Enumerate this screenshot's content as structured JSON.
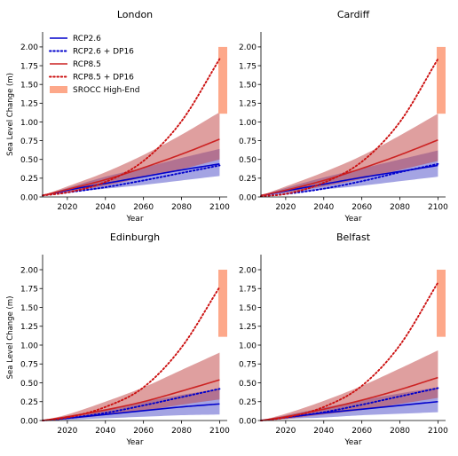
{
  "chart_data": [
    {
      "type": "line",
      "title": "London",
      "xlabel": "Year",
      "ylabel": "Sea Level Change (m)",
      "xlim": [
        2007,
        2104
      ],
      "ylim": [
        0,
        2.2
      ],
      "xticks": [
        "2020",
        "2040",
        "2060",
        "2080",
        "2100"
      ],
      "yticks": [
        "0.00",
        "0.25",
        "0.50",
        "0.75",
        "1.00",
        "1.25",
        "1.50",
        "1.75",
        "2.00"
      ],
      "legend_position": "top-left",
      "x": [
        2007,
        2020,
        2040,
        2060,
        2080,
        2100
      ],
      "series": [
        {
          "name": "RCP2.6",
          "style": "solid",
          "color": "#0000cc",
          "values": [
            0.02,
            0.09,
            0.18,
            0.27,
            0.36,
            0.44
          ],
          "band_low": [
            0.02,
            0.06,
            0.11,
            0.16,
            0.22,
            0.28
          ],
          "band_high": [
            0.02,
            0.12,
            0.27,
            0.39,
            0.52,
            0.64
          ],
          "band_color": "#4a4ac8"
        },
        {
          "name": "RCP2.6 + DP16",
          "style": "dotted",
          "color": "#0000cc",
          "values": [
            0.02,
            0.06,
            0.13,
            0.22,
            0.32,
            0.42
          ]
        },
        {
          "name": "RCP8.5",
          "style": "solid",
          "color": "#cc2222",
          "values": [
            0.02,
            0.1,
            0.23,
            0.39,
            0.57,
            0.77
          ],
          "band_low": [
            0.02,
            0.07,
            0.15,
            0.26,
            0.37,
            0.5
          ],
          "band_high": [
            0.02,
            0.14,
            0.33,
            0.56,
            0.83,
            1.13
          ],
          "band_color": "#c04040"
        },
        {
          "name": "RCP8.5 + DP16",
          "style": "dotted",
          "color": "#cc1111",
          "values": [
            0.02,
            0.06,
            0.2,
            0.48,
            1.01,
            1.84
          ]
        }
      ],
      "srocc_high_end": {
        "name": "SROCC High-End",
        "range": [
          1.11,
          2.0
        ],
        "color": "#fda88a"
      }
    },
    {
      "type": "line",
      "title": "Cardiff",
      "xlabel": "Year",
      "ylabel": "",
      "xlim": [
        2007,
        2104
      ],
      "ylim": [
        0,
        2.2
      ],
      "xticks": [
        "2020",
        "2040",
        "2060",
        "2080",
        "2100"
      ],
      "yticks": [
        "0.00",
        "0.25",
        "0.50",
        "0.75",
        "1.00",
        "1.25",
        "1.50",
        "1.75",
        "2.00"
      ],
      "x": [
        2007,
        2020,
        2040,
        2060,
        2080,
        2100
      ],
      "series": [
        {
          "name": "RCP2.6",
          "style": "solid",
          "color": "#0000cc",
          "values": [
            0.02,
            0.08,
            0.17,
            0.26,
            0.34,
            0.42
          ],
          "band_low": [
            0.02,
            0.05,
            0.1,
            0.15,
            0.21,
            0.27
          ],
          "band_high": [
            0.02,
            0.12,
            0.26,
            0.38,
            0.5,
            0.62
          ],
          "band_color": "#4a4ac8"
        },
        {
          "name": "RCP2.6 + DP16",
          "style": "dotted",
          "color": "#0000cc",
          "values": [
            0.01,
            0.04,
            0.11,
            0.21,
            0.33,
            0.44
          ]
        },
        {
          "name": "RCP8.5",
          "style": "solid",
          "color": "#cc2222",
          "values": [
            0.02,
            0.09,
            0.22,
            0.38,
            0.56,
            0.76
          ],
          "band_low": [
            0.02,
            0.06,
            0.14,
            0.24,
            0.36,
            0.48
          ],
          "band_high": [
            0.02,
            0.14,
            0.33,
            0.55,
            0.82,
            1.11
          ],
          "band_color": "#c04040"
        },
        {
          "name": "RCP8.5 + DP16",
          "style": "dotted",
          "color": "#cc1111",
          "values": [
            0.01,
            0.04,
            0.19,
            0.47,
            1.0,
            1.84
          ]
        }
      ],
      "srocc_high_end": {
        "name": "SROCC High-End",
        "range": [
          1.11,
          2.0
        ],
        "color": "#fda88a"
      }
    },
    {
      "type": "line",
      "title": "Edinburgh",
      "xlabel": "Year",
      "ylabel": "Sea Level Change (m)",
      "xlim": [
        2007,
        2104
      ],
      "ylim": [
        0,
        2.2
      ],
      "xticks": [
        "2020",
        "2040",
        "2060",
        "2080",
        "2100"
      ],
      "yticks": [
        "0.00",
        "0.25",
        "0.50",
        "0.75",
        "1.00",
        "1.25",
        "1.50",
        "1.75",
        "2.00"
      ],
      "x": [
        2007,
        2020,
        2040,
        2060,
        2080,
        2100
      ],
      "series": [
        {
          "name": "RCP2.6",
          "style": "solid",
          "color": "#0000cc",
          "values": [
            0.0,
            0.03,
            0.08,
            0.13,
            0.18,
            0.22
          ],
          "band_low": [
            0.0,
            0.01,
            0.03,
            0.05,
            0.07,
            0.08
          ],
          "band_high": [
            0.0,
            0.06,
            0.15,
            0.25,
            0.34,
            0.42
          ],
          "band_color": "#4a4ac8"
        },
        {
          "name": "RCP2.6 + DP16",
          "style": "dotted",
          "color": "#0000cc",
          "values": [
            0.0,
            0.03,
            0.1,
            0.2,
            0.31,
            0.42
          ]
        },
        {
          "name": "RCP8.5",
          "style": "solid",
          "color": "#cc2222",
          "values": [
            0.0,
            0.05,
            0.14,
            0.25,
            0.39,
            0.54
          ],
          "band_low": [
            0.0,
            0.02,
            0.07,
            0.13,
            0.21,
            0.28
          ],
          "band_high": [
            0.0,
            0.08,
            0.25,
            0.44,
            0.67,
            0.9
          ],
          "band_color": "#c04040"
        },
        {
          "name": "RCP8.5 + DP16",
          "style": "dotted",
          "color": "#cc1111",
          "values": [
            0.0,
            0.04,
            0.18,
            0.44,
            0.97,
            1.77
          ]
        }
      ],
      "srocc_high_end": {
        "name": "SROCC High-End",
        "range": [
          1.11,
          2.0
        ],
        "color": "#fda88a"
      }
    },
    {
      "type": "line",
      "title": "Belfast",
      "xlabel": "Year",
      "ylabel": "",
      "xlim": [
        2007,
        2104
      ],
      "ylim": [
        0,
        2.2
      ],
      "xticks": [
        "2020",
        "2040",
        "2060",
        "2080",
        "2100"
      ],
      "yticks": [
        "0.00",
        "0.25",
        "0.50",
        "0.75",
        "1.00",
        "1.25",
        "1.50",
        "1.75",
        "2.00"
      ],
      "x": [
        2007,
        2020,
        2040,
        2060,
        2080,
        2100
      ],
      "series": [
        {
          "name": "RCP2.6",
          "style": "solid",
          "color": "#0000cc",
          "values": [
            0.0,
            0.04,
            0.1,
            0.15,
            0.2,
            0.25
          ],
          "band_low": [
            0.0,
            0.02,
            0.04,
            0.07,
            0.09,
            0.11
          ],
          "band_high": [
            0.0,
            0.07,
            0.17,
            0.27,
            0.36,
            0.44
          ],
          "band_color": "#4a4ac8"
        },
        {
          "name": "RCP2.6 + DP16",
          "style": "dotted",
          "color": "#0000cc",
          "values": [
            0.0,
            0.04,
            0.11,
            0.21,
            0.32,
            0.43
          ]
        },
        {
          "name": "RCP8.5",
          "style": "solid",
          "color": "#cc2222",
          "values": [
            0.0,
            0.05,
            0.15,
            0.27,
            0.41,
            0.57
          ],
          "band_low": [
            0.0,
            0.02,
            0.08,
            0.14,
            0.22,
            0.3
          ],
          "band_high": [
            0.0,
            0.09,
            0.26,
            0.46,
            0.69,
            0.93
          ],
          "band_color": "#c04040"
        },
        {
          "name": "RCP8.5 + DP16",
          "style": "dotted",
          "color": "#cc1111",
          "values": [
            0.0,
            0.04,
            0.18,
            0.46,
            1.0,
            1.83
          ]
        }
      ],
      "srocc_high_end": {
        "name": "SROCC High-End",
        "range": [
          1.11,
          2.0
        ],
        "color": "#fda88a"
      }
    }
  ]
}
